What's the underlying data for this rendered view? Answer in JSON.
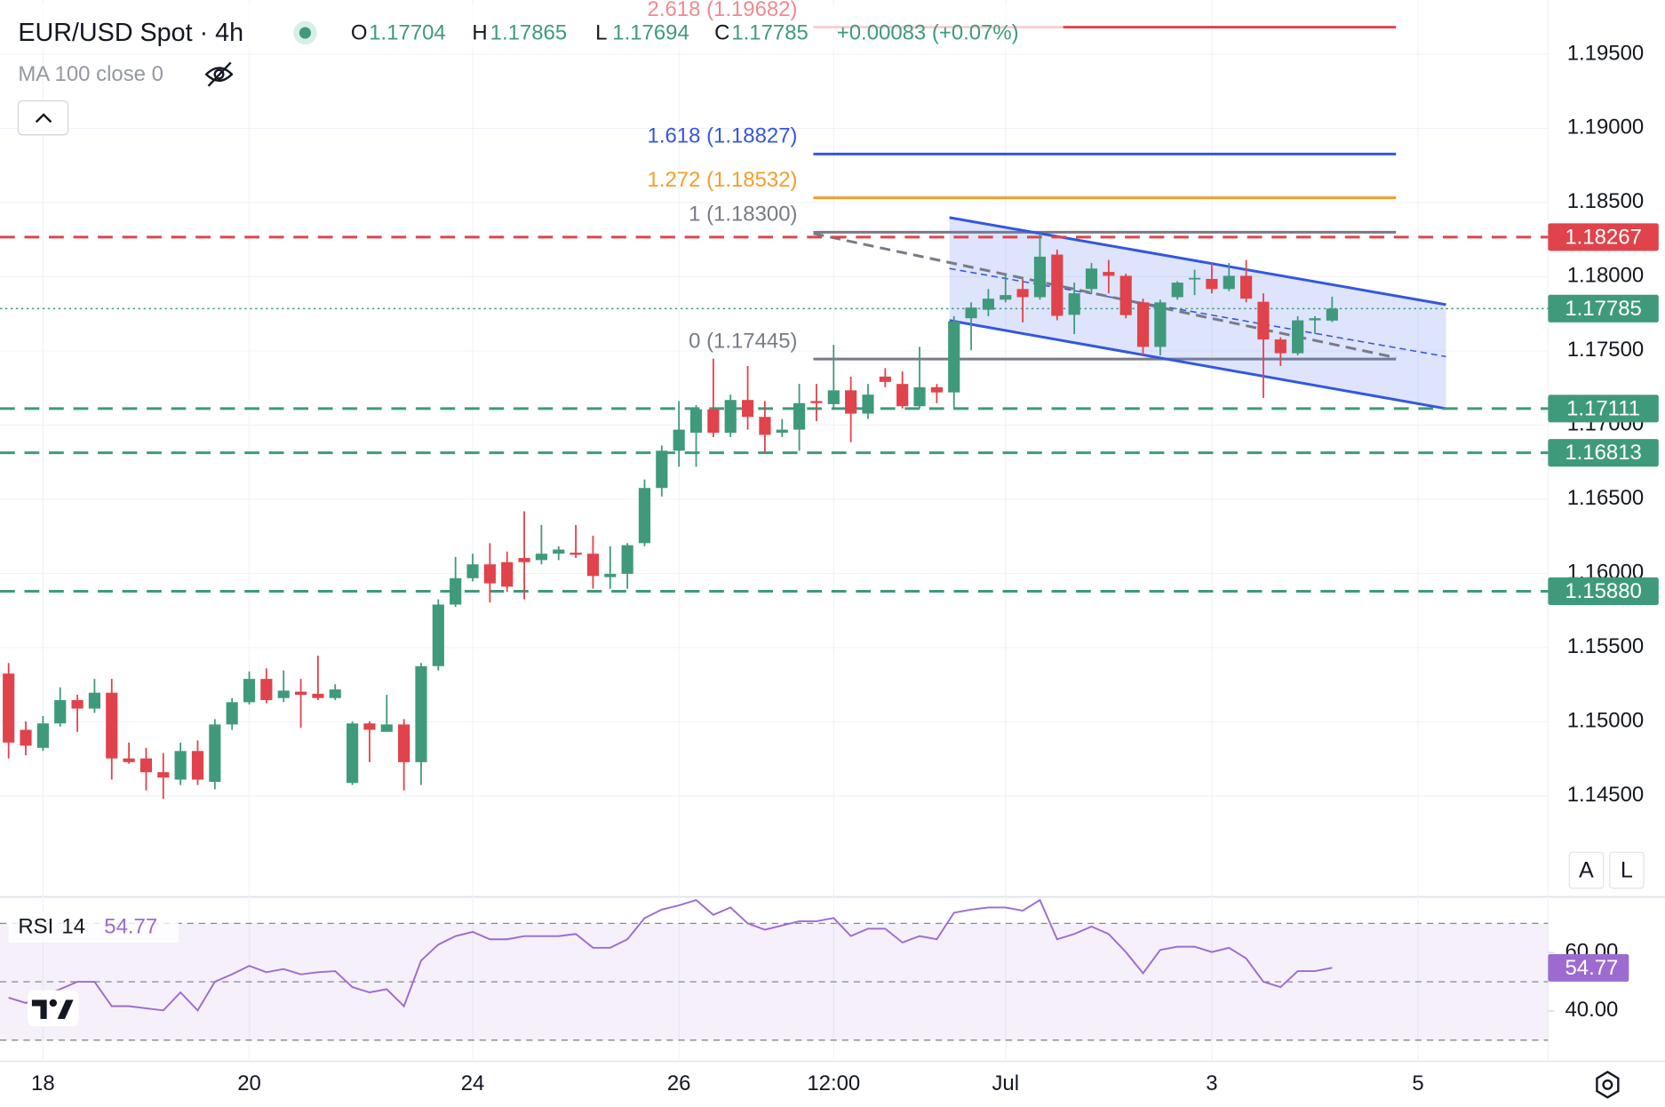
{
  "chart_data": {
    "type": "candlestick",
    "title": "EUR/USD Spot · 4h",
    "ohlc_keys": [
      "O",
      "H",
      "L",
      "C"
    ],
    "change": "+0.00083 (+0.07%)",
    "indicator": "MA 100 close 0",
    "buttons": [
      "A",
      "L"
    ],
    "up_color": "#3f9a7b",
    "down_color": "#e0434b",
    "grid": true,
    "open": [
      1.15325,
      1.14946,
      1.14824,
      1.14989,
      1.15146,
      1.15089,
      1.15196,
      1.14753,
      1.14753,
      1.1466,
      1.1461,
      1.14803,
      1.14595,
      1.14982,
      1.15132,
      1.15289,
      1.1516,
      1.15203,
      1.15189,
      1.1516,
      1.14588,
      1.14989,
      1.14932,
      1.14982,
      1.14728,
      1.15375,
      1.1579,
      1.15968,
      1.16061,
      1.16076,
      1.16104,
      1.1609,
      1.16133,
      1.1614,
      1.16133,
      1.15975,
      1.15997,
      1.16204,
      1.16576,
      1.16827,
      1.16948,
      1.17106,
      1.16948,
      1.17169,
      1.17055,
      1.16948,
      1.16969,
      1.17162,
      1.17141,
      1.17234,
      1.17077,
      1.17327,
      1.17277,
      1.17127,
      1.17255,
      1.1722,
      1.1772,
      1.17777,
      1.17845,
      1.17917,
      1.17862,
      1.18149,
      1.17743,
      1.17917,
      1.18032,
      1.18006,
      1.17827,
      1.17527,
      1.17862,
      1.17985,
      1.17985,
      1.17917,
      1.18006,
      1.17831,
      1.17577,
      1.17484,
      1.17706,
      1.17704
    ],
    "high": [
      1.15396,
      1.15003,
      1.15039,
      1.15232,
      1.15182,
      1.15289,
      1.15289,
      1.1486,
      1.14824,
      1.14789,
      1.1486,
      1.14874,
      1.15018,
      1.1516,
      1.15339,
      1.1536,
      1.15346,
      1.15289,
      1.15446,
      1.15253,
      1.15003,
      1.15003,
      1.15182,
      1.15018,
      1.15396,
      1.15825,
      1.16111,
      1.16133,
      1.16204,
      1.16147,
      1.16419,
      1.16326,
      1.16183,
      1.16326,
      1.16254,
      1.16183,
      1.16204,
      1.16633,
      1.16862,
      1.17162,
      1.17134,
      1.17448,
      1.17205,
      1.17398,
      1.17162,
      1.17041,
      1.17277,
      1.17277,
      1.17541,
      1.17327,
      1.17277,
      1.17384,
      1.17362,
      1.17527,
      1.17277,
      1.17734,
      1.17827,
      1.17917,
      1.1801,
      1.17982,
      1.18292,
      1.18183,
      1.1796,
      1.18092,
      1.18113,
      1.1802,
      1.17852,
      1.17845,
      1.1797,
      1.18047,
      1.18092,
      1.18092,
      1.18113,
      1.17888,
      1.17592,
      1.17734,
      1.17734,
      1.17865
    ],
    "low": [
      1.14753,
      1.14774,
      1.14803,
      1.14967,
      1.14932,
      1.1506,
      1.1461,
      1.14717,
      1.14538,
      1.14481,
      1.14574,
      1.14574,
      1.14545,
      1.14946,
      1.15117,
      1.15125,
      1.15132,
      1.1496,
      1.15146,
      1.15146,
      1.14574,
      1.14728,
      1.14932,
      1.14538,
      1.14574,
      1.15346,
      1.15775,
      1.15947,
      1.15804,
      1.15875,
      1.15825,
      1.16061,
      1.1609,
      1.16104,
      1.15897,
      1.15897,
      1.15897,
      1.16183,
      1.16519,
      1.16719,
      1.16719,
      1.16919,
      1.16919,
      1.16969,
      1.16813,
      1.16919,
      1.16827,
      1.17026,
      1.17112,
      1.16884,
      1.17041,
      1.17255,
      1.17112,
      1.17112,
      1.17148,
      1.17106,
      1.17505,
      1.17734,
      1.17827,
      1.17692,
      1.17845,
      1.17706,
      1.17613,
      1.17888,
      1.17888,
      1.1772,
      1.1747,
      1.1747,
      1.17845,
      1.17876,
      1.17888,
      1.17903,
      1.17827,
      1.17183,
      1.17398,
      1.1747,
      1.17613,
      1.17694
    ],
    "close": [
      1.1486,
      1.14839,
      1.14989,
      1.15146,
      1.15089,
      1.15196,
      1.14753,
      1.14728,
      1.1466,
      1.14624,
      1.14803,
      1.1461,
      1.14982,
      1.15132,
      1.15289,
      1.15146,
      1.1521,
      1.15182,
      1.1516,
      1.15218,
      1.14989,
      1.14946,
      1.14982,
      1.14728,
      1.15375,
      1.1579,
      1.15968,
      1.16061,
      1.15933,
      1.15911,
      1.16076,
      1.16133,
      1.16161,
      1.16126,
      1.15983,
      1.15997,
      1.1619,
      1.16576,
      1.16827,
      1.16969,
      1.17106,
      1.16948,
      1.17169,
      1.17055,
      1.16934,
      1.16969,
      1.17148,
      1.17148,
      1.17234,
      1.17077,
      1.17205,
      1.17291,
      1.17127,
      1.17255,
      1.1722,
      1.17699,
      1.17792,
      1.17852,
      1.17876,
      1.17862,
      1.18135,
      1.17736,
      1.17888,
      1.18055,
      1.18006,
      1.17741,
      1.17527,
      1.17827,
      1.1796,
      1.17992,
      1.17917,
      1.18006,
      1.17852,
      1.17577,
      1.17484,
      1.17706,
      1.1772,
      1.17785
    ],
    "xlim": [
      -0.5,
      89.5
    ],
    "xticks": [
      {
        "value": 2,
        "label": "18"
      },
      {
        "value": 14,
        "label": "20"
      },
      {
        "value": 27,
        "label": "24"
      },
      {
        "value": 39,
        "label": "26"
      },
      {
        "value": 48,
        "label": "12:00"
      },
      {
        "value": 58,
        "label": "Jul"
      },
      {
        "value": 70,
        "label": "3"
      },
      {
        "value": 82,
        "label": "5"
      }
    ],
    "ylim": [
      1.1382,
      1.19865
    ],
    "yticks": [
      {
        "value": 1.195,
        "label": "1.19500"
      },
      {
        "value": 1.19,
        "label": "1.19000"
      },
      {
        "value": 1.185,
        "label": "1.18500"
      },
      {
        "value": 1.18,
        "label": "1.18000"
      },
      {
        "value": 1.175,
        "label": "1.17500"
      },
      {
        "value": 1.17,
        "label": "1.17000"
      },
      {
        "value": 1.165,
        "label": "1.16500"
      },
      {
        "value": 1.16,
        "label": "1.16000"
      },
      {
        "value": 1.155,
        "label": "1.15500"
      },
      {
        "value": 1.15,
        "label": "1.15000"
      },
      {
        "value": 1.145,
        "label": "1.14500"
      }
    ],
    "levels": [
      {
        "value": 1.18267,
        "color": "#e0434b"
      },
      {
        "value": 1.17111,
        "color": "#3f9a7b"
      },
      {
        "value": 1.16813,
        "color": "#3f9a7b"
      },
      {
        "value": 1.1588,
        "label": "1.15880",
        "color": "#3f9a7b"
      }
    ],
    "fibs": [
      {
        "text": "2.618 (1.19682)",
        "value": 1.19682,
        "color": "#e0434b",
        "text_color": "#f08a8f"
      },
      {
        "text": "1.618 (1.18827)",
        "value": 1.18827,
        "color": "#3357e0",
        "text_color": "#3357e0"
      },
      {
        "text": "1.272 (1.18532)",
        "value": 1.18532,
        "color": "#f59d2a",
        "text_color": "#f59d2a"
      },
      {
        "text": "1 (1.18300)",
        "value": 1.183,
        "color": "#787b86",
        "text_color": "#787b86"
      },
      {
        "text": "0 (1.17445)",
        "value": 1.17445,
        "color": "#787b86",
        "text_color": "#787b86"
      }
    ],
    "rsi": {
      "name": "RSI",
      "length": 14,
      "color": "#9c6bd0",
      "ylim": [
        22.73,
        79.09
      ],
      "yticks": [
        {
          "value": 60,
          "label": "60.00"
        },
        {
          "value": 40,
          "label": "40.00"
        }
      ],
      "bands": [
        70,
        50,
        30
      ],
      "values": [
        44.55,
        42.73,
        45.27,
        47.45,
        50,
        50,
        41.64,
        41.64,
        40.91,
        40.18,
        46.36,
        40.18,
        50,
        52.55,
        55.45,
        53.27,
        54.36,
        52.55,
        53.27,
        53.64,
        48.18,
        46.36,
        47.45,
        41.64,
        57.27,
        62.73,
        65.64,
        67.09,
        64.55,
        64.55,
        65.64,
        65.64,
        65.64,
        66.36,
        61.64,
        61.64,
        64.55,
        71.82,
        74.73,
        76.18,
        78,
        72.91,
        75.45,
        70,
        67.82,
        69.27,
        70.73,
        70.73,
        71.82,
        65.64,
        68.18,
        68.18,
        63.45,
        65.64,
        64.55,
        73.64,
        74.73,
        75.45,
        75.45,
        74.36,
        78,
        64.55,
        66.36,
        68.91,
        66.36,
        60.18,
        52.91,
        60.91,
        62,
        62,
        60.18,
        61.64,
        58,
        50,
        48.18,
        53.64,
        53.64,
        54.77
      ]
    }
  }
}
